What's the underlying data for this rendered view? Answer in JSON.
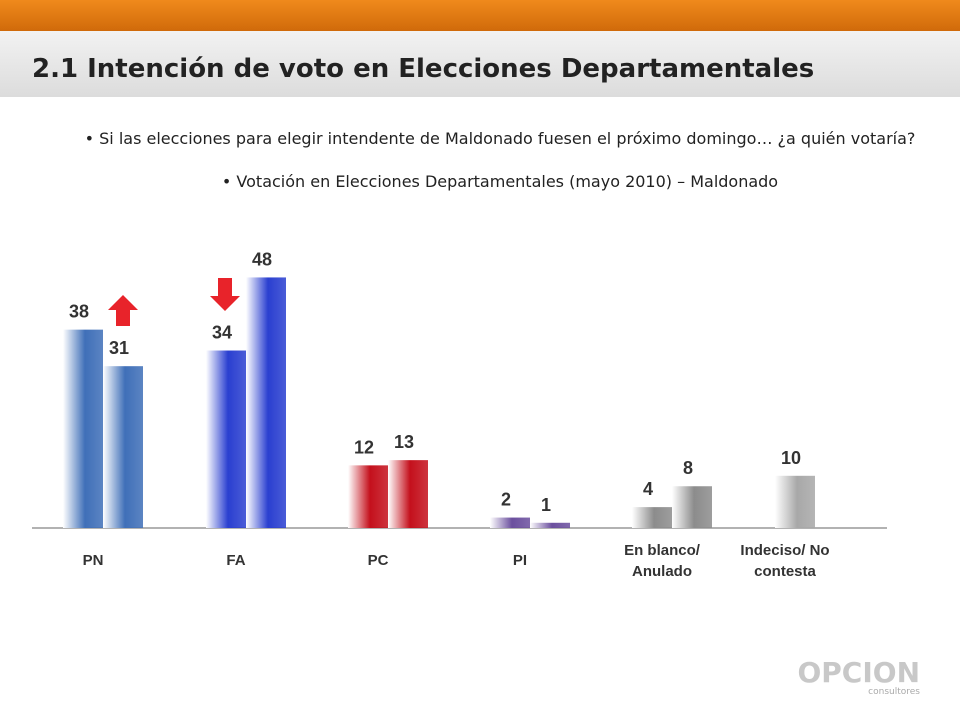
{
  "chart_data": {
    "type": "bar",
    "title": "2.1 Intención de voto en Elecciones Departamentales",
    "bullets": [
      "Si las elecciones para elegir intendente de Maldonado fuesen el próximo domingo… ¿a quién votaría?",
      "Votación en Elecciones Departamentales (mayo 2010) – Maldonado"
    ],
    "categories": [
      "PN",
      "FA",
      "PC",
      "PI",
      "En blanco/ Anulado",
      "Indeciso/ No contesta"
    ],
    "colors": [
      "#3f6fb8",
      "#2a3fd0",
      "#c4101c",
      "#6b4f9e",
      "#8c8c8c",
      "#a8a8a8"
    ],
    "series": [
      {
        "values": [
          38,
          34,
          12,
          2,
          4,
          10
        ]
      },
      {
        "values": [
          31,
          48,
          13,
          1,
          8,
          null
        ]
      }
    ],
    "logo": "OPCION",
    "logo_sub": "consultores"
  }
}
